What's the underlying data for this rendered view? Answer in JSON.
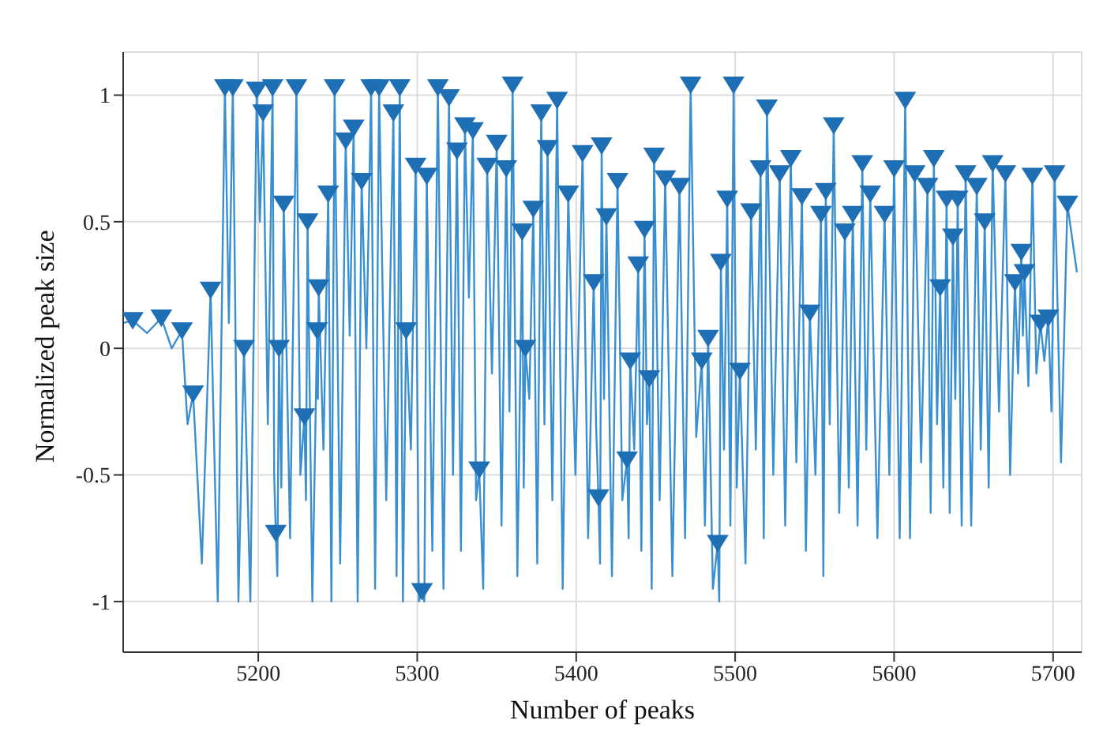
{
  "chart_data": {
    "type": "line",
    "xlabel": "Number of peaks",
    "ylabel": "Normalized peak size",
    "xlim": [
      5115,
      5718
    ],
    "xticks": [
      5200,
      5300,
      5400,
      5500,
      5600,
      5700
    ],
    "ylim": [
      -1.2,
      1.17
    ],
    "yticks": [
      -1,
      -0.5,
      0,
      0.5,
      1
    ],
    "grid": true,
    "series": [
      {
        "color": "#3a8fd0",
        "marker": "none",
        "x": [
          5115,
          5121,
          5130,
          5139,
          5145.5,
          5152,
          5155.5,
          5159,
          5164.5,
          5170,
          5174.5,
          5179,
          5181.5,
          5184,
          5187.5,
          5191,
          5195,
          5199,
          5201,
          5203,
          5206,
          5209,
          5210,
          5211,
          5212,
          5213,
          5214.5,
          5216,
          5220,
          5224,
          5226.5,
          5229,
          5230,
          5231,
          5234,
          5237,
          5237.5,
          5238,
          5241,
          5244,
          5246,
          5248,
          5251.5,
          5255,
          5257.5,
          5260,
          5262.5,
          5265,
          5268,
          5271,
          5273.5,
          5276,
          5280.5,
          5285,
          5287,
          5289,
          5291,
          5293,
          5296,
          5299,
          5301,
          5303,
          5304.5,
          5306,
          5309.5,
          5313,
          5316.5,
          5320,
          5322.5,
          5325,
          5327.5,
          5330,
          5332.5,
          5335,
          5337,
          5339,
          5341.5,
          5344,
          5347,
          5350,
          5353,
          5356,
          5358,
          5360,
          5363,
          5366,
          5367,
          5368,
          5370.5,
          5373,
          5375.5,
          5378,
          5380,
          5382,
          5385,
          5388,
          5391.5,
          5395,
          5399.5,
          5404,
          5407.5,
          5411,
          5412.5,
          5414,
          5415,
          5416,
          5417.5,
          5419,
          5422.5,
          5426,
          5429,
          5432,
          5433,
          5434,
          5436.5,
          5439,
          5441,
          5443,
          5444.5,
          5446,
          5447.5,
          5449,
          5452.5,
          5456,
          5460.5,
          5465,
          5468.5,
          5472,
          5475.5,
          5479,
          5481,
          5483,
          5486,
          5489,
          5490,
          5491,
          5493,
          5495,
          5497,
          5499,
          5501,
          5503,
          5506.5,
          5510,
          5513,
          5516,
          5518,
          5520,
          5524,
          5528,
          5531.5,
          5535,
          5538.5,
          5542,
          5544.5,
          5547,
          5550.5,
          5554,
          5555.5,
          5557,
          5559.5,
          5562,
          5565.5,
          5569,
          5571.5,
          5574,
          5577,
          5580,
          5582.5,
          5585,
          5589.5,
          5594,
          5597,
          5600,
          5603.5,
          5607,
          5610,
          5613,
          5617,
          5621,
          5623,
          5625,
          5627,
          5629,
          5631,
          5633,
          5635,
          5637,
          5638.5,
          5640,
          5642.5,
          5645,
          5648.5,
          5652,
          5654.5,
          5657,
          5659.5,
          5662,
          5666,
          5670,
          5673,
          5676,
          5678,
          5680,
          5681,
          5682,
          5684.5,
          5687,
          5689.5,
          5692,
          5694.5,
          5697,
          5699,
          5701,
          5705,
          5709,
          5715
        ],
        "values": [
          0.1,
          0.11,
          0.06,
          0.12,
          0.0,
          0.07,
          -0.3,
          -0.18,
          -0.85,
          0.23,
          -1.0,
          1.03,
          0.1,
          1.03,
          -1.0,
          0.0,
          -1.0,
          1.02,
          0.5,
          0.93,
          -0.3,
          1.03,
          -0.5,
          -0.73,
          -0.9,
          0.0,
          -0.55,
          0.57,
          -0.75,
          1.03,
          -0.5,
          -0.27,
          -0.6,
          0.5,
          -1.0,
          0.07,
          -0.2,
          0.24,
          -0.4,
          0.61,
          -1.0,
          1.03,
          -0.85,
          0.82,
          0.05,
          0.87,
          -1.0,
          0.66,
          0.0,
          1.03,
          -0.95,
          1.03,
          -0.6,
          0.93,
          -0.9,
          1.03,
          -1.0,
          0.07,
          -0.4,
          0.72,
          -1.0,
          -0.96,
          -1.0,
          0.68,
          -0.8,
          1.03,
          -0.95,
          0.99,
          -0.5,
          0.78,
          -0.8,
          0.88,
          0.2,
          0.86,
          -0.6,
          -0.48,
          -0.95,
          0.72,
          -0.1,
          0.81,
          -0.7,
          0.71,
          -0.25,
          1.04,
          -0.9,
          0.46,
          -0.55,
          0.0,
          -0.2,
          0.55,
          -0.85,
          0.93,
          -0.3,
          0.79,
          -0.6,
          0.98,
          -0.95,
          0.61,
          -0.5,
          0.77,
          -0.75,
          0.26,
          -0.3,
          -0.59,
          -0.85,
          0.8,
          -0.2,
          0.52,
          -0.9,
          0.66,
          -0.6,
          -0.44,
          -0.75,
          -0.05,
          -0.4,
          0.33,
          -0.8,
          0.47,
          -0.3,
          -0.12,
          -0.95,
          0.76,
          -0.6,
          0.67,
          -0.9,
          0.64,
          -0.75,
          1.04,
          -0.35,
          -0.05,
          -0.7,
          0.04,
          -0.95,
          -0.77,
          -1.0,
          0.34,
          -0.4,
          0.59,
          -0.7,
          1.04,
          -0.55,
          -0.09,
          -0.85,
          0.54,
          -0.4,
          0.71,
          -0.75,
          0.95,
          -0.5,
          0.69,
          -0.7,
          0.75,
          -0.45,
          0.6,
          -0.8,
          0.14,
          -0.5,
          0.53,
          -0.9,
          0.62,
          -0.3,
          0.88,
          -0.65,
          0.46,
          -0.55,
          0.53,
          -0.7,
          0.73,
          -0.4,
          0.61,
          -0.75,
          0.53,
          -0.5,
          0.71,
          -0.75,
          0.98,
          -0.75,
          0.69,
          -0.45,
          0.64,
          -0.65,
          0.75,
          -0.3,
          0.24,
          -0.55,
          0.59,
          -0.65,
          0.44,
          -0.2,
          0.59,
          -0.7,
          0.69,
          -0.7,
          0.64,
          -0.4,
          0.5,
          -0.55,
          0.73,
          -0.25,
          0.69,
          -0.5,
          0.26,
          -0.1,
          0.38,
          0.05,
          0.3,
          -0.15,
          0.68,
          -0.1,
          0.1,
          -0.05,
          0.12,
          -0.25,
          0.69,
          -0.45,
          0.57,
          0.3
        ]
      },
      {
        "type": "scatter",
        "color": "#1f6fb5",
        "marker": "triangle",
        "x": [
          5121,
          5139,
          5152,
          5159,
          5170,
          5179,
          5184,
          5191,
          5199,
          5203,
          5209,
          5211,
          5213,
          5216,
          5224,
          5229,
          5231,
          5237,
          5238,
          5244,
          5248,
          5255,
          5260,
          5265,
          5271,
          5276,
          5285,
          5289,
          5293,
          5299,
          5303,
          5306,
          5313,
          5320,
          5325,
          5330,
          5335,
          5339,
          5344,
          5350,
          5356,
          5360,
          5366,
          5368,
          5373,
          5378,
          5382,
          5388,
          5395,
          5404,
          5411,
          5414,
          5416,
          5419,
          5426,
          5432,
          5434,
          5439,
          5443,
          5446,
          5449,
          5456,
          5465,
          5472,
          5479,
          5483,
          5489,
          5491,
          5495,
          5499,
          5503,
          5510,
          5516,
          5520,
          5528,
          5535,
          5542,
          5547,
          5554,
          5557,
          5562,
          5569,
          5574,
          5580,
          5585,
          5594,
          5600,
          5607,
          5613,
          5621,
          5625,
          5629,
          5633,
          5637,
          5640,
          5645,
          5652,
          5657,
          5662,
          5670,
          5676,
          5680,
          5682,
          5687,
          5692,
          5697,
          5701,
          5709
        ],
        "values": [
          0.11,
          0.12,
          0.07,
          -0.18,
          0.23,
          1.03,
          1.03,
          0.0,
          1.02,
          0.93,
          1.03,
          -0.73,
          0.0,
          0.57,
          1.03,
          -0.27,
          0.5,
          0.07,
          0.24,
          0.61,
          1.03,
          0.82,
          0.87,
          0.66,
          1.03,
          1.03,
          0.93,
          1.03,
          0.07,
          0.72,
          -0.96,
          0.68,
          1.03,
          0.99,
          0.78,
          0.88,
          0.86,
          -0.48,
          0.72,
          0.81,
          0.71,
          1.04,
          0.46,
          0.0,
          0.55,
          0.93,
          0.79,
          0.98,
          0.61,
          0.77,
          0.26,
          -0.59,
          0.8,
          0.52,
          0.66,
          -0.44,
          -0.05,
          0.33,
          0.47,
          -0.12,
          0.76,
          0.67,
          0.64,
          1.04,
          -0.05,
          0.04,
          -0.77,
          0.34,
          0.59,
          1.04,
          -0.09,
          0.54,
          0.71,
          0.95,
          0.69,
          0.75,
          0.6,
          0.14,
          0.53,
          0.62,
          0.88,
          0.46,
          0.53,
          0.73,
          0.61,
          0.53,
          0.71,
          0.98,
          0.69,
          0.64,
          0.75,
          0.24,
          0.59,
          0.44,
          0.59,
          0.69,
          0.64,
          0.5,
          0.73,
          0.69,
          0.26,
          0.38,
          0.3,
          0.68,
          0.1,
          0.12,
          0.69,
          0.57
        ]
      }
    ]
  }
}
